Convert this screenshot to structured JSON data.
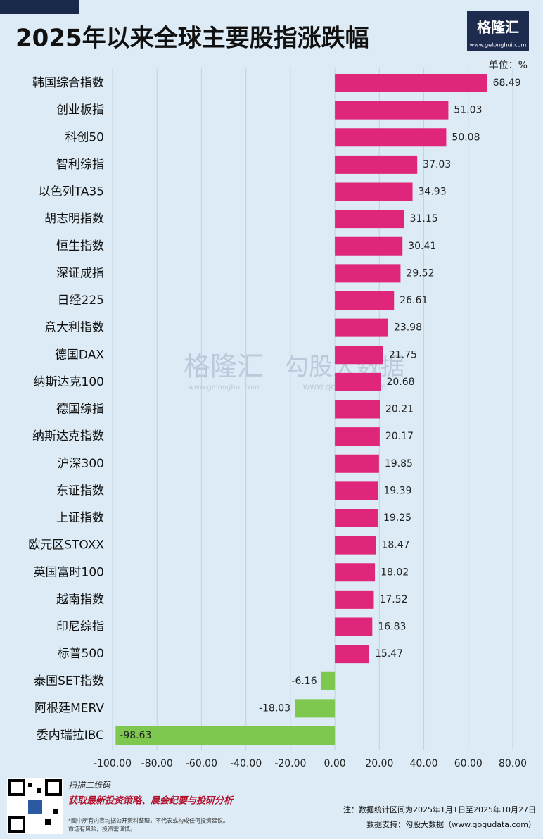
{
  "header": {
    "title": "2025年以来全球主要股指涨跌幅",
    "logo_name": "格隆汇",
    "logo_url": "www.gelonghui.com",
    "unit": "单位：%"
  },
  "chart_data": {
    "type": "barh",
    "categories": [
      "韩国综合指数",
      "创业板指",
      "科创50",
      "智利综指",
      "以色列TA35",
      "胡志明指数",
      "恒生指数",
      "深证成指",
      "日经225",
      "意大利指数",
      "德国DAX",
      "纳斯达克100",
      "德国综指",
      "纳斯达克指数",
      "沪深300",
      "东证指数",
      "上证指数",
      "欧元区STOXX",
      "英国富时100",
      "越南指数",
      "印尼综指",
      "标普500",
      "泰国SET指数",
      "阿根廷MERV",
      "委内瑞拉IBC"
    ],
    "values": [
      68.49,
      51.03,
      50.08,
      37.03,
      34.93,
      31.15,
      30.41,
      29.52,
      26.61,
      23.98,
      21.75,
      20.68,
      20.21,
      20.17,
      19.85,
      19.39,
      19.25,
      18.47,
      18.02,
      17.52,
      16.83,
      15.47,
      -6.16,
      -18.03,
      -98.63
    ],
    "positive_color": "#e0267b",
    "negative_color": "#7ec84f",
    "xlim": [
      -100,
      80
    ],
    "xticks": [
      {
        "value": -100,
        "label": "-100.00"
      },
      {
        "value": -80,
        "label": "-80.00"
      },
      {
        "value": -60,
        "label": "-60.00"
      },
      {
        "value": -40,
        "label": "-40.00"
      },
      {
        "value": -20,
        "label": "-20.00"
      },
      {
        "value": 0,
        "label": "0.00"
      },
      {
        "value": 20,
        "label": "20.00"
      },
      {
        "value": 40,
        "label": "40.00"
      },
      {
        "value": 60,
        "label": "60.00"
      },
      {
        "value": 80,
        "label": "80.00"
      }
    ],
    "grid": true
  },
  "watermark": {
    "left_name": "格隆汇",
    "left_url": "www.gelonghui.com",
    "right_name": "勾股大数据",
    "right_url": "www.gogudata.com"
  },
  "footer": {
    "scan": "扫描二维码",
    "slogan": "获取最新投资策略、晨会纪要与投研分析",
    "disclaimer1": "*图中所有内容均据公开资料整理，不代表或构成任何投资建议。",
    "disclaimer2": "市场有风险，投资需谨慎。",
    "note": "注：数据统计区间为2025年1月1日至2025年10月27日",
    "source": "数据支持：勾股大数据（www.gogudata.com）"
  }
}
